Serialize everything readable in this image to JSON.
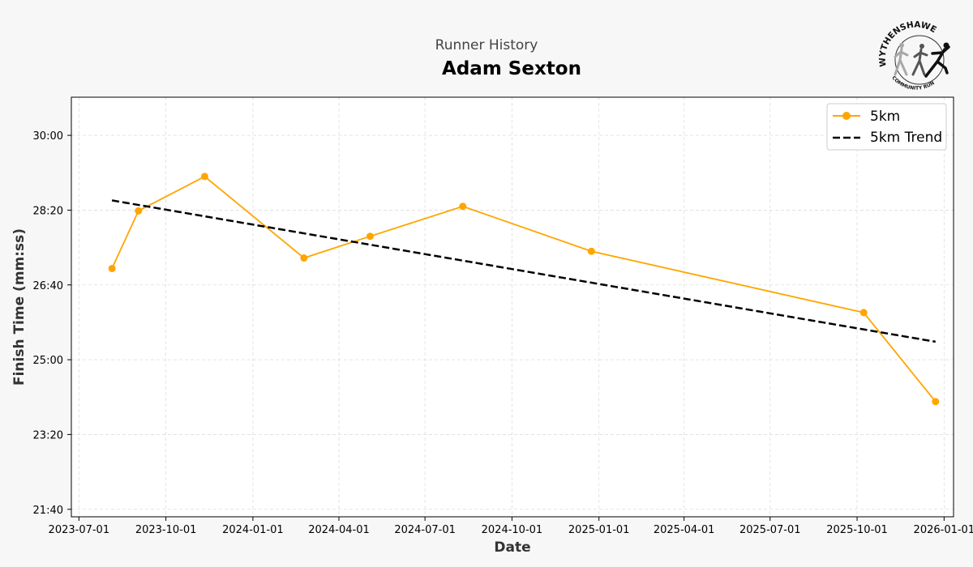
{
  "header": {
    "suptitle": "Runner History",
    "title": "Adam Sexton"
  },
  "logo": {
    "name": "WYTHENSHAWE",
    "tagline": "COMMUNITY RUN"
  },
  "chart_data": {
    "type": "line",
    "xlabel": "Date",
    "ylabel": "Finish Time (mm:ss)",
    "xlim": [
      "2023-06-23",
      "2026-01-11"
    ],
    "ylim_seconds": [
      1290,
      1851
    ],
    "x_ticks": [
      "2023-07-01",
      "2023-10-01",
      "2024-01-01",
      "2024-04-01",
      "2024-07-01",
      "2024-10-01",
      "2025-01-01",
      "2025-04-01",
      "2025-07-01",
      "2025-10-01",
      "2026-01-01"
    ],
    "y_ticks": [
      {
        "seconds": 1300,
        "label": "21:40"
      },
      {
        "seconds": 1400,
        "label": "23:20"
      },
      {
        "seconds": 1500,
        "label": "25:00"
      },
      {
        "seconds": 1600,
        "label": "26:40"
      },
      {
        "seconds": 1700,
        "label": "28:20"
      },
      {
        "seconds": 1800,
        "label": "30:00"
      }
    ],
    "grid": true,
    "legend_position": "top-right",
    "series": [
      {
        "name": "5km",
        "style": "line-marker",
        "color": "#FFA500",
        "points": [
          {
            "x": "2023-08-05",
            "y": 1622
          },
          {
            "x": "2023-09-02",
            "y": 1699
          },
          {
            "x": "2023-11-11",
            "y": 1745
          },
          {
            "x": "2024-02-24",
            "y": 1636
          },
          {
            "x": "2024-05-04",
            "y": 1665
          },
          {
            "x": "2024-08-10",
            "y": 1705
          },
          {
            "x": "2024-12-24",
            "y": 1645
          },
          {
            "x": "2025-10-08",
            "y": 1563
          },
          {
            "x": "2025-12-23",
            "y": 1444
          }
        ]
      },
      {
        "name": "5km Trend",
        "style": "dashed",
        "color": "#000000",
        "points": [
          {
            "x": "2023-08-05",
            "y": 1713
          },
          {
            "x": "2025-12-23",
            "y": 1524
          }
        ]
      }
    ]
  }
}
